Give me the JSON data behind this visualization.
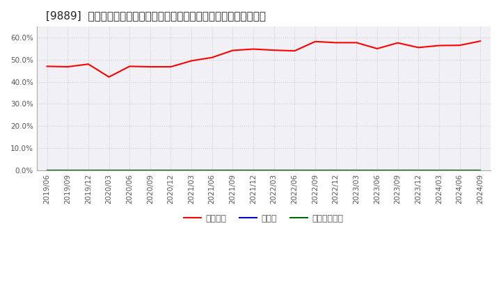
{
  "title": "[9889]  自己資本、のれん、繰延税金資産の総資産に対する比率の推移",
  "x_labels": [
    "2019/06",
    "2019/09",
    "2019/12",
    "2020/03",
    "2020/06",
    "2020/09",
    "2020/12",
    "2021/03",
    "2021/06",
    "2021/09",
    "2021/12",
    "2022/03",
    "2022/06",
    "2022/09",
    "2022/12",
    "2023/03",
    "2023/06",
    "2023/09",
    "2023/12",
    "2024/03",
    "2024/06",
    "2024/09"
  ],
  "jikoshihon": [
    0.47,
    0.468,
    0.48,
    0.422,
    0.47,
    0.468,
    0.468,
    0.495,
    0.51,
    0.542,
    0.548,
    0.543,
    0.54,
    0.582,
    0.577,
    0.577,
    0.55,
    0.576,
    0.555,
    0.564,
    0.565,
    0.584
  ],
  "noren": [
    0.0,
    0.0,
    0.0,
    0.0,
    0.0,
    0.0,
    0.0,
    0.0,
    0.0,
    0.0,
    0.0,
    0.0,
    0.0,
    0.0,
    0.0,
    0.0,
    0.0,
    0.0,
    0.0,
    0.0,
    0.0,
    0.0
  ],
  "kuenzeizei": [
    0.0,
    0.0,
    0.0,
    0.0,
    0.0,
    0.0,
    0.0,
    0.0,
    0.0,
    0.0,
    0.0,
    0.0,
    0.0,
    0.0,
    0.0,
    0.0,
    0.0,
    0.0,
    0.0,
    0.0,
    0.0,
    0.0
  ],
  "color_jikoshihon": "#ff0000",
  "color_noren": "#0000cc",
  "color_kuenzeizei": "#006600",
  "legend_label_jikoshihon": "自己資本",
  "legend_label_noren": "のれん",
  "legend_label_kuenzeizei": "繰延税金資産",
  "ylim": [
    0.0,
    0.65
  ],
  "yticks": [
    0.0,
    0.1,
    0.2,
    0.3,
    0.4,
    0.5,
    0.6
  ],
  "background_color": "#ffffff",
  "plot_bg_color": "#f0f0f5",
  "grid_color": "#cccccc",
  "title_fontsize": 11,
  "axis_fontsize": 7.5,
  "legend_fontsize": 9
}
